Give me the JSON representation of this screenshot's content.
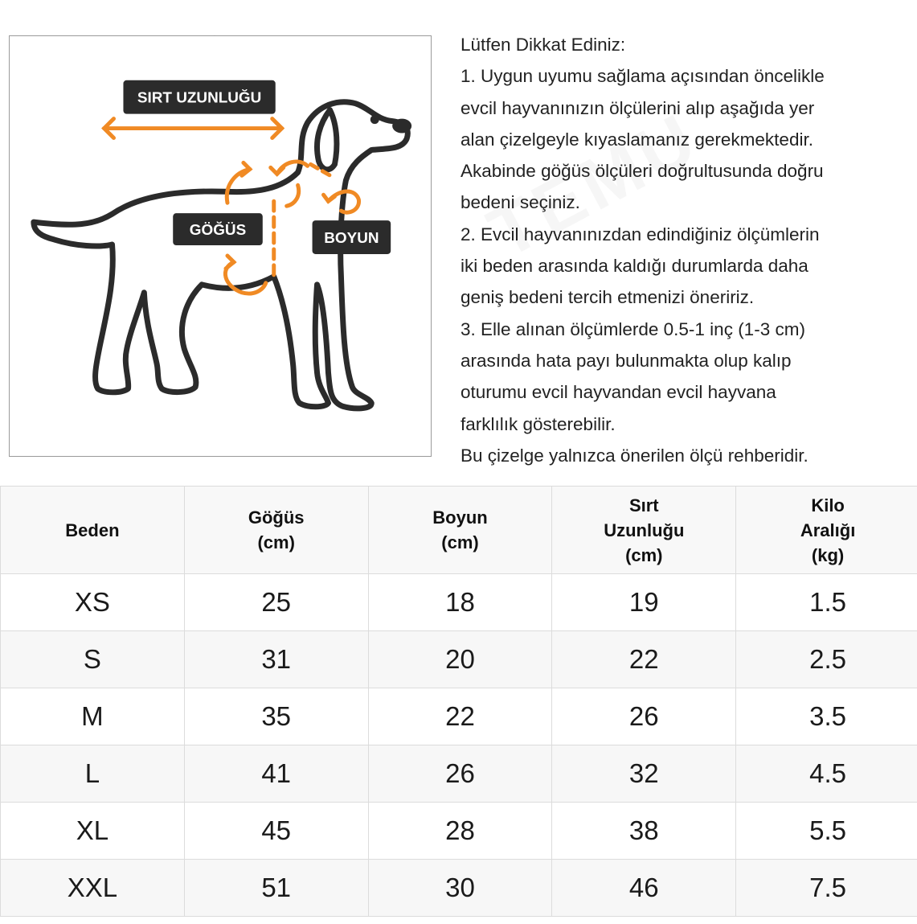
{
  "colors": {
    "accent": "#f08a24",
    "outline": "#2b2b2b",
    "label_bg": "#2b2b2b",
    "label_text": "#ffffff"
  },
  "diagram": {
    "labels": {
      "back_length": "SIRT UZUNLUĞU",
      "chest": "GÖĞÜS",
      "neck": "BOYUN"
    }
  },
  "notes": {
    "title": "Lütfen Dikkat Ediniz:",
    "lines": [
      "1. Uygun uyumu sağlama açısından öncelikle",
      "evcil hayvanınızın ölçülerini alıp aşağıda yer",
      "alan çizelgeyle kıyaslamanız gerekmektedir.",
      "Akabinde göğüs ölçüleri doğrultusunda doğru",
      "bedeni seçiniz.",
      "2. Evcil hayvanınızdan edindiğiniz ölçümlerin",
      "iki beden arasında kaldığı durumlarda daha",
      "geniş bedeni tercih etmenizi öneririz.",
      "3. Elle alınan ölçümlerde 0.5-1 inç (1-3 cm)",
      "arasında hata payı bulunmakta olup kalıp",
      "oturumu evcil hayvandan evcil hayvana",
      "farklılık gösterebilir.",
      "Bu çizelge yalnızca önerilen ölçü rehberidir."
    ]
  },
  "table": {
    "headers": [
      "Beden",
      "Göğüs\n(cm)",
      "Boyun\n(cm)",
      "Sırt\nUzunluğu\n(cm)",
      "Kilo\nAralığı\n(kg)"
    ],
    "rows": [
      [
        "XS",
        "25",
        "18",
        "19",
        "1.5"
      ],
      [
        "S",
        "31",
        "20",
        "22",
        "2.5"
      ],
      [
        "M",
        "35",
        "22",
        "26",
        "3.5"
      ],
      [
        "L",
        "41",
        "26",
        "32",
        "4.5"
      ],
      [
        "XL",
        "45",
        "28",
        "38",
        "5.5"
      ],
      [
        "XXL",
        "51",
        "30",
        "46",
        "7.5"
      ]
    ]
  }
}
